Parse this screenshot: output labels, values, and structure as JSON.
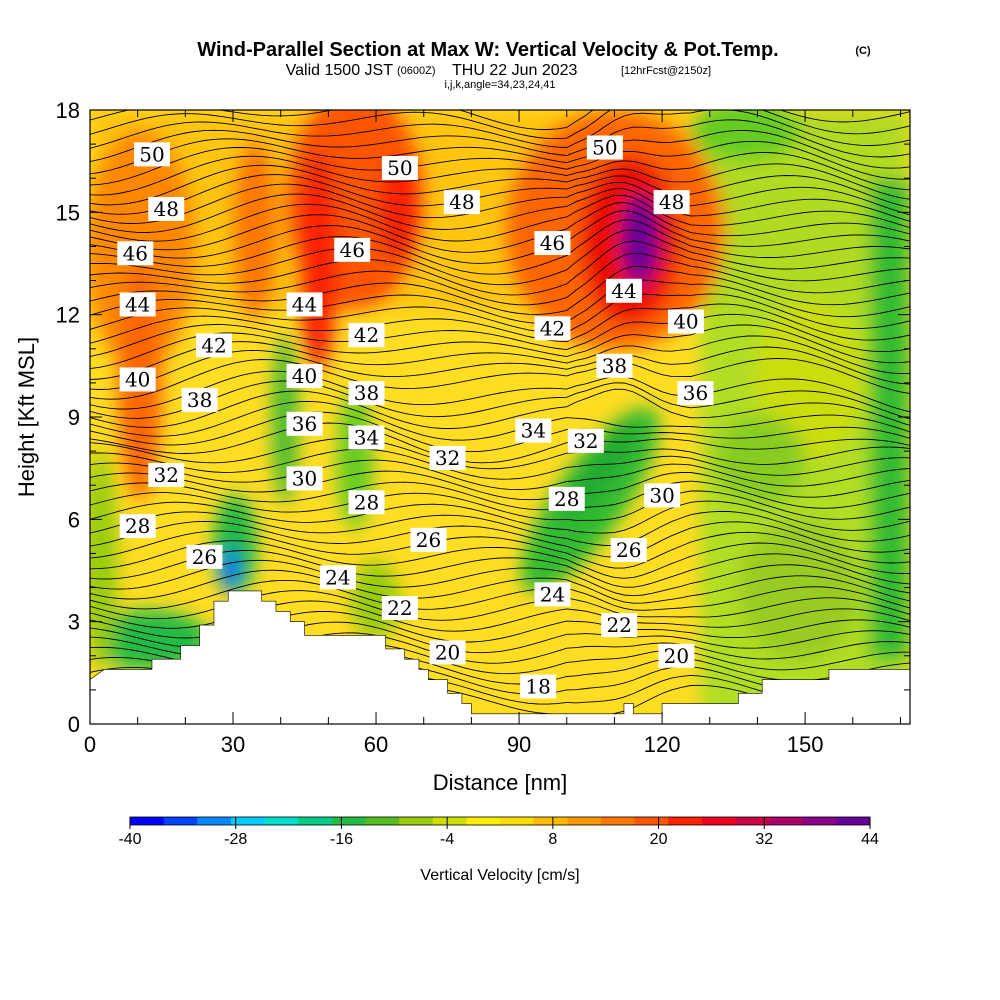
{
  "chart_data": {
    "type": "heatmap",
    "title": "Wind-Parallel Section at Max W: Vertical Velocity & Pot.Temp.",
    "title_mark": "(C)",
    "subtitle": {
      "prefix": "Valid 1500 JST",
      "small1": "(0600Z)",
      "main": "THU 22 Jun 2023",
      "small2": "[12hrFcst@2150z]"
    },
    "subtitle2": "i,j,k,angle=34,23,24,41",
    "xlabel": "Distance [nm]",
    "ylabel": "Height [Kft MSL]",
    "xlim": [
      0,
      172
    ],
    "ylim": [
      0,
      18
    ],
    "xticks": [
      0,
      30,
      60,
      90,
      120,
      150
    ],
    "yticks": [
      0,
      3,
      6,
      9,
      12,
      15,
      18
    ],
    "colorbar": {
      "label": "Vertical Velocity [cm/s]",
      "ticks": [
        -40,
        -28,
        -16,
        -4,
        8,
        20,
        32,
        44
      ],
      "min": -40,
      "max": 44,
      "colors": [
        "#0000ff",
        "#0044ff",
        "#0088ff",
        "#00ccff",
        "#00ddcc",
        "#00cc88",
        "#22bb44",
        "#55bb22",
        "#99cc11",
        "#ccdd00",
        "#ffee00",
        "#ffdd00",
        "#ffbb00",
        "#ff9900",
        "#ff7700",
        "#ff5500",
        "#ff2200",
        "#ee0022",
        "#cc0044",
        "#aa0066",
        "#880088",
        "#660099"
      ]
    },
    "isentrope_labels": [
      {
        "x": 13,
        "y": 16.7,
        "text": "50"
      },
      {
        "x": 16,
        "y": 15.1,
        "text": "48"
      },
      {
        "x": 9.5,
        "y": 13.8,
        "text": "46"
      },
      {
        "x": 10,
        "y": 12.3,
        "text": "44"
      },
      {
        "x": 26,
        "y": 11.1,
        "text": "42"
      },
      {
        "x": 10,
        "y": 10.1,
        "text": "40"
      },
      {
        "x": 23,
        "y": 9.5,
        "text": "38"
      },
      {
        "x": 16,
        "y": 7.3,
        "text": "32"
      },
      {
        "x": 10,
        "y": 5.8,
        "text": "28"
      },
      {
        "x": 24,
        "y": 4.9,
        "text": "26"
      },
      {
        "x": 65,
        "y": 16.3,
        "text": "50"
      },
      {
        "x": 78,
        "y": 15.3,
        "text": "48"
      },
      {
        "x": 55,
        "y": 13.9,
        "text": "46"
      },
      {
        "x": 45,
        "y": 12.3,
        "text": "44"
      },
      {
        "x": 58,
        "y": 11.4,
        "text": "42"
      },
      {
        "x": 45,
        "y": 10.2,
        "text": "40"
      },
      {
        "x": 58,
        "y": 9.7,
        "text": "38"
      },
      {
        "x": 45,
        "y": 8.8,
        "text": "36"
      },
      {
        "x": 58,
        "y": 8.4,
        "text": "34"
      },
      {
        "x": 45,
        "y": 7.2,
        "text": "30"
      },
      {
        "x": 58,
        "y": 6.5,
        "text": "28"
      },
      {
        "x": 75,
        "y": 7.8,
        "text": "32"
      },
      {
        "x": 71,
        "y": 5.4,
        "text": "26"
      },
      {
        "x": 52,
        "y": 4.3,
        "text": "24"
      },
      {
        "x": 65,
        "y": 3.4,
        "text": "22"
      },
      {
        "x": 75,
        "y": 2.1,
        "text": "20"
      },
      {
        "x": 94,
        "y": 1.1,
        "text": "18"
      },
      {
        "x": 108,
        "y": 16.9,
        "text": "50"
      },
      {
        "x": 122,
        "y": 15.3,
        "text": "48"
      },
      {
        "x": 97,
        "y": 14.1,
        "text": "46"
      },
      {
        "x": 112,
        "y": 12.7,
        "text": "44"
      },
      {
        "x": 97,
        "y": 11.6,
        "text": "42"
      },
      {
        "x": 125,
        "y": 11.8,
        "text": "40"
      },
      {
        "x": 110,
        "y": 10.5,
        "text": "38"
      },
      {
        "x": 127,
        "y": 9.7,
        "text": "36"
      },
      {
        "x": 93,
        "y": 8.6,
        "text": "34"
      },
      {
        "x": 104,
        "y": 8.3,
        "text": "32"
      },
      {
        "x": 100,
        "y": 6.6,
        "text": "28"
      },
      {
        "x": 120,
        "y": 6.7,
        "text": "30"
      },
      {
        "x": 113,
        "y": 5.1,
        "text": "26"
      },
      {
        "x": 97,
        "y": 3.8,
        "text": "24"
      },
      {
        "x": 111,
        "y": 2.9,
        "text": "22"
      },
      {
        "x": 123,
        "y": 2.0,
        "text": "20"
      }
    ],
    "terrain_profile": [
      [
        0,
        1.3
      ],
      [
        3,
        1.6
      ],
      [
        13,
        1.6
      ],
      [
        13,
        1.9
      ],
      [
        19,
        1.9
      ],
      [
        19,
        2.3
      ],
      [
        23,
        2.3
      ],
      [
        23,
        2.9
      ],
      [
        26,
        2.9
      ],
      [
        26,
        3.6
      ],
      [
        29,
        3.6
      ],
      [
        29,
        3.9
      ],
      [
        36,
        3.9
      ],
      [
        36,
        3.6
      ],
      [
        39,
        3.6
      ],
      [
        39,
        3.3
      ],
      [
        42,
        3.3
      ],
      [
        42,
        3.0
      ],
      [
        45,
        3.0
      ],
      [
        45,
        2.6
      ],
      [
        62,
        2.6
      ],
      [
        62,
        2.2
      ],
      [
        66,
        2.2
      ],
      [
        66,
        1.9
      ],
      [
        69,
        1.9
      ],
      [
        69,
        1.6
      ],
      [
        71,
        1.6
      ],
      [
        71,
        1.3
      ],
      [
        75,
        1.3
      ],
      [
        75,
        0.9
      ],
      [
        78,
        0.9
      ],
      [
        78,
        0.6
      ],
      [
        80,
        0.6
      ],
      [
        80,
        0.3
      ],
      [
        112,
        0.3
      ],
      [
        112,
        0.6
      ],
      [
        114,
        0.6
      ],
      [
        114,
        0.3
      ],
      [
        120,
        0.3
      ],
      [
        120,
        0.6
      ],
      [
        136,
        0.6
      ],
      [
        136,
        0.9
      ],
      [
        141,
        0.9
      ],
      [
        141,
        1.3
      ],
      [
        155,
        1.3
      ],
      [
        155,
        1.6
      ],
      [
        172,
        1.6
      ]
    ]
  }
}
